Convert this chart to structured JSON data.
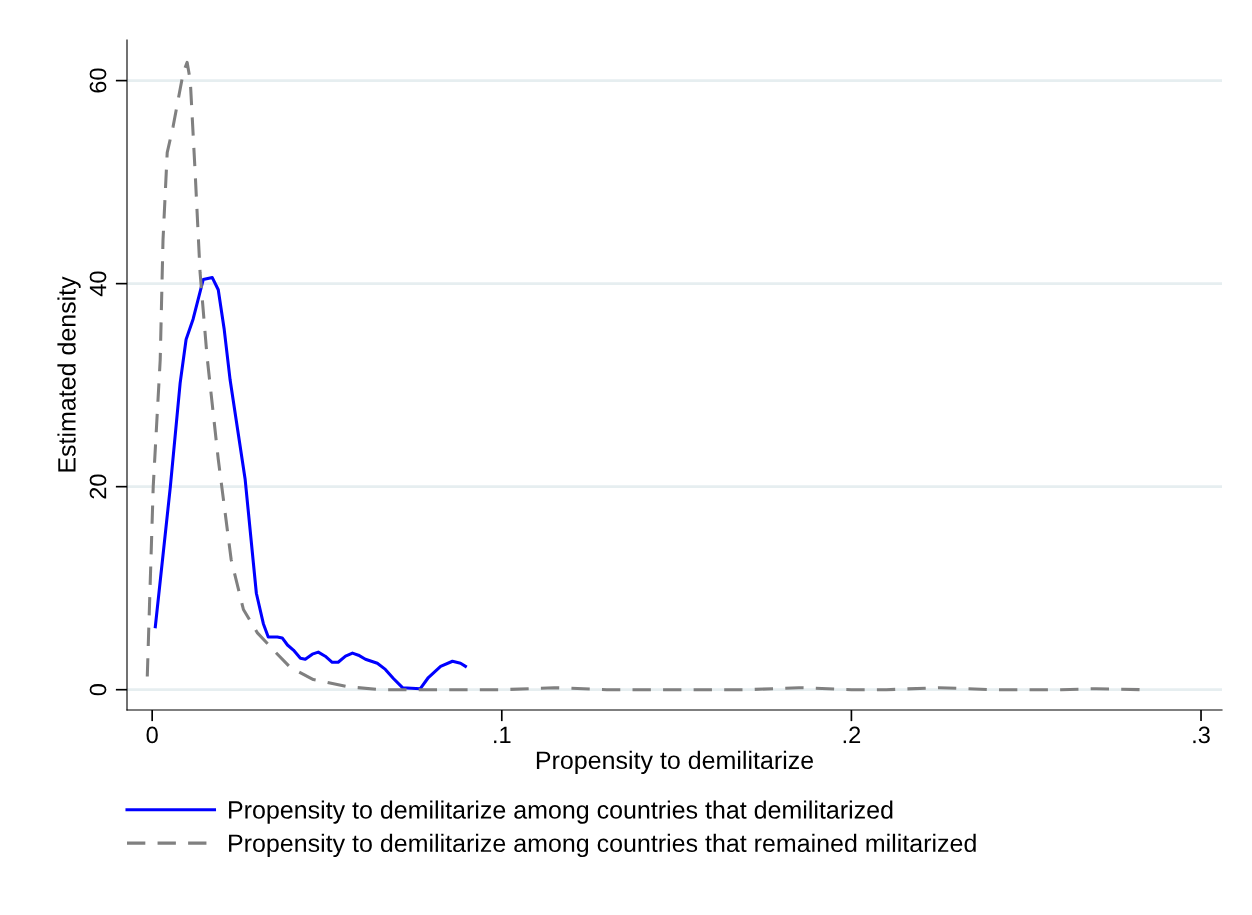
{
  "chart_data": {
    "type": "line",
    "xlabel": "Propensity to demilitarize",
    "ylabel": "Estimated density",
    "xlim": [
      -0.0072,
      0.306
    ],
    "ylim": [
      -2,
      64
    ],
    "xticks": [
      {
        "value": 0,
        "label": "0"
      },
      {
        "value": 0.1,
        "label": ".1"
      },
      {
        "value": 0.2,
        "label": ".2"
      },
      {
        "value": 0.3,
        "label": ".3"
      }
    ],
    "yticks": [
      0,
      20,
      40,
      60
    ],
    "grid": "y",
    "legend": "bottom",
    "series": [
      {
        "name": "Propensity to demilitarize among countries that demilitarized",
        "color": "#0000ff",
        "line_style": "solid",
        "x": [
          0.0009,
          0.0052,
          0.008,
          0.0097,
          0.0117,
          0.0146,
          0.0172,
          0.0189,
          0.0206,
          0.0223,
          0.0266,
          0.0298,
          0.0318,
          0.0332,
          0.0358,
          0.0372,
          0.0387,
          0.0404,
          0.0424,
          0.0438,
          0.0458,
          0.0475,
          0.0495,
          0.0515,
          0.0532,
          0.0553,
          0.0573,
          0.059,
          0.061,
          0.0644,
          0.0667,
          0.069,
          0.0716,
          0.0767,
          0.079,
          0.0825,
          0.0859,
          0.0882,
          0.0896
        ],
        "values": [
          6.2,
          20,
          30.2,
          34.5,
          36.5,
          40.4,
          40.6,
          39.4,
          35.5,
          30.5,
          20.7,
          9.5,
          6.5,
          5.2,
          5.2,
          5.1,
          4.4,
          3.9,
          3.1,
          3.0,
          3.5,
          3.7,
          3.3,
          2.7,
          2.7,
          3.3,
          3.6,
          3.4,
          3.0,
          2.6,
          2.0,
          1.1,
          0.2,
          0.1,
          1.2,
          2.3,
          2.8,
          2.6,
          2.3
        ]
      },
      {
        "name": "Propensity to demilitarize among countries that remained militarized",
        "color": "#808080",
        "line_style": "dashed",
        "x": [
          -0.0014,
          0.0003,
          0.0023,
          0.0031,
          0.0043,
          0.006,
          0.0089,
          0.01,
          0.0109,
          0.0123,
          0.0137,
          0.0157,
          0.0189,
          0.0226,
          0.0261,
          0.0301,
          0.0347,
          0.0395,
          0.0461,
          0.0558,
          0.0652,
          0.08,
          0.1,
          0.115,
          0.13,
          0.17,
          0.185,
          0.2,
          0.21,
          0.225,
          0.24,
          0.26,
          0.27,
          0.283
        ],
        "values": [
          1.3,
          20,
          32.5,
          44.3,
          52.9,
          55.5,
          60.8,
          61.8,
          60,
          50.9,
          41.1,
          32.8,
          22.7,
          12.8,
          7.9,
          5.6,
          3.9,
          2.2,
          1.0,
          0.3,
          0,
          0,
          0,
          0.2,
          0,
          0,
          0.2,
          0,
          0,
          0.2,
          0,
          0,
          0.1,
          0
        ]
      }
    ]
  }
}
